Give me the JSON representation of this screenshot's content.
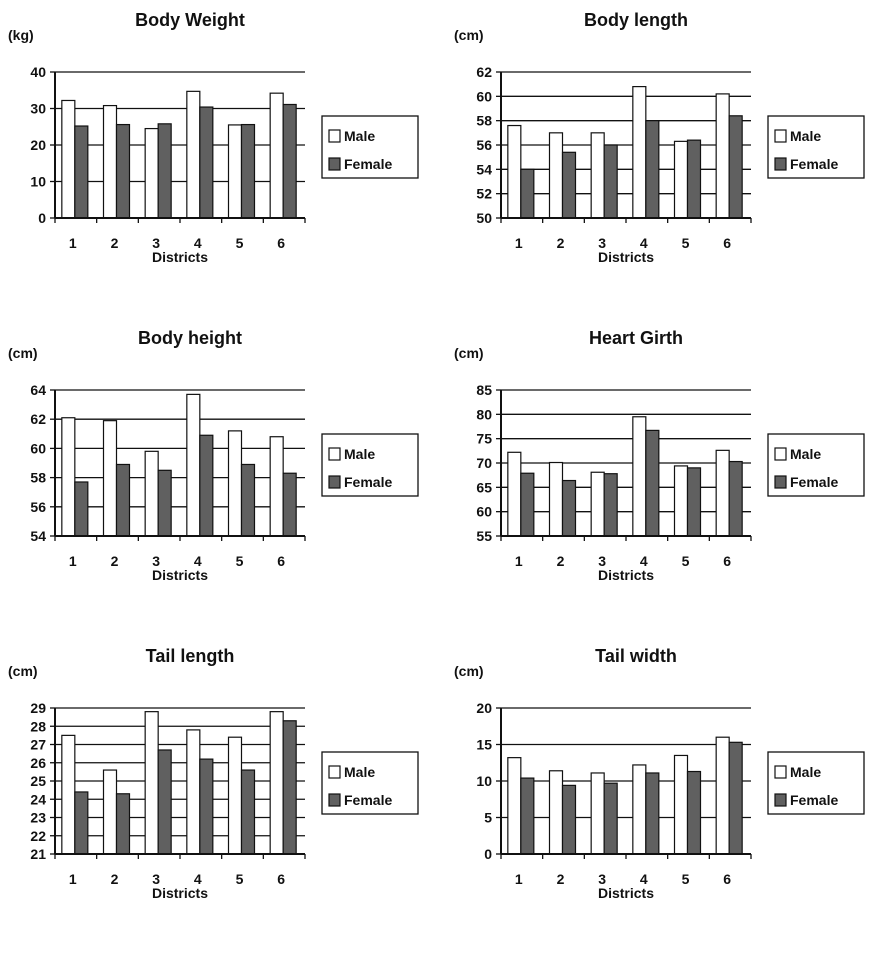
{
  "colors": {
    "male": "#ffffff",
    "female": "#606060",
    "axis": "#111111"
  },
  "chart_data": [
    {
      "type": "bar",
      "title": "Body Weight",
      "unit": "(kg)",
      "xlabel": "Districts",
      "categories": [
        "1",
        "2",
        "3",
        "4",
        "5",
        "6"
      ],
      "ylim": [
        0,
        40
      ],
      "yticks": [
        0,
        10,
        20,
        30,
        40
      ],
      "grid": true,
      "legend": "right",
      "series": [
        {
          "name": "Male",
          "values": [
            32.2,
            30.8,
            24.5,
            34.7,
            25.5,
            34.2
          ]
        },
        {
          "name": "Female",
          "values": [
            25.2,
            25.6,
            25.8,
            30.4,
            25.6,
            31.1
          ]
        }
      ]
    },
    {
      "type": "bar",
      "title": "Body length",
      "unit": "(cm)",
      "xlabel": "Districts",
      "categories": [
        "1",
        "2",
        "3",
        "4",
        "5",
        "6"
      ],
      "ylim": [
        50,
        62
      ],
      "yticks": [
        50,
        52,
        54,
        56,
        58,
        60,
        62
      ],
      "grid": true,
      "legend": "right",
      "series": [
        {
          "name": "Male",
          "values": [
            57.6,
            57.0,
            57.0,
            60.8,
            56.3,
            60.2
          ]
        },
        {
          "name": "Female",
          "values": [
            54.0,
            55.4,
            56.0,
            58.0,
            56.4,
            58.4
          ]
        }
      ]
    },
    {
      "type": "bar",
      "title": "Body height",
      "unit": "(cm)",
      "xlabel": "Districts",
      "categories": [
        "1",
        "2",
        "3",
        "4",
        "5",
        "6"
      ],
      "ylim": [
        54,
        64
      ],
      "yticks": [
        54,
        56,
        58,
        60,
        62,
        64
      ],
      "grid": true,
      "legend": "right",
      "series": [
        {
          "name": "Male",
          "values": [
            62.1,
            61.9,
            59.8,
            63.7,
            61.2,
            60.8
          ]
        },
        {
          "name": "Female",
          "values": [
            57.7,
            58.9,
            58.5,
            60.9,
            58.9,
            58.3
          ]
        }
      ]
    },
    {
      "type": "bar",
      "title": "Heart Girth",
      "unit": "(cm)",
      "xlabel": "Districts",
      "categories": [
        "1",
        "2",
        "3",
        "4",
        "5",
        "6"
      ],
      "ylim": [
        55,
        85
      ],
      "yticks": [
        55,
        60,
        65,
        70,
        75,
        80,
        85
      ],
      "grid": true,
      "legend": "right",
      "series": [
        {
          "name": "Male",
          "values": [
            72.2,
            70.1,
            68.1,
            79.5,
            69.4,
            72.6
          ]
        },
        {
          "name": "Female",
          "values": [
            67.9,
            66.4,
            67.8,
            76.7,
            69.0,
            70.3
          ]
        }
      ]
    },
    {
      "type": "bar",
      "title": "Tail length",
      "unit": "(cm)",
      "xlabel": "Districts",
      "categories": [
        "1",
        "2",
        "3",
        "4",
        "5",
        "6"
      ],
      "ylim": [
        21,
        29
      ],
      "yticks": [
        21,
        22,
        23,
        24,
        25,
        26,
        27,
        28,
        29
      ],
      "grid": true,
      "legend": "right",
      "series": [
        {
          "name": "Male",
          "values": [
            27.5,
            25.6,
            28.8,
            27.8,
            27.4,
            28.8
          ]
        },
        {
          "name": "Female",
          "values": [
            24.4,
            24.3,
            26.7,
            26.2,
            25.6,
            28.3
          ]
        }
      ]
    },
    {
      "type": "bar",
      "title": "Tail width",
      "unit": "(cm)",
      "xlabel": "Districts",
      "categories": [
        "1",
        "2",
        "3",
        "4",
        "5",
        "6"
      ],
      "ylim": [
        0,
        20
      ],
      "yticks": [
        0,
        5,
        10,
        15,
        20
      ],
      "grid": true,
      "legend": "right",
      "series": [
        {
          "name": "Male",
          "values": [
            13.2,
            11.4,
            11.1,
            12.2,
            13.5,
            16.0
          ]
        },
        {
          "name": "Female",
          "values": [
            10.4,
            9.4,
            9.7,
            11.1,
            11.3,
            15.3
          ]
        }
      ]
    }
  ]
}
